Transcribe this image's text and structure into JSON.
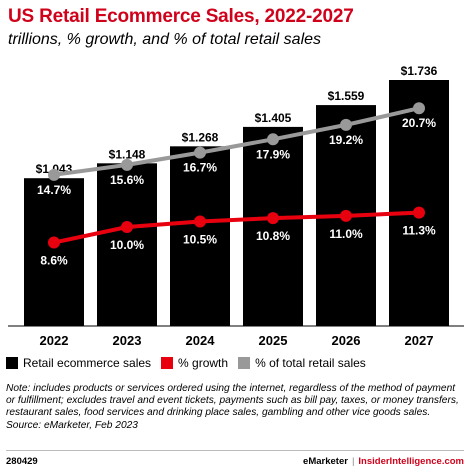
{
  "header": {
    "title": "US Retail Ecommerce Sales, 2022-2027",
    "subtitle": "trillions, % growth, and % of total retail sales"
  },
  "legend": {
    "items": [
      {
        "label": "Retail ecommerce sales",
        "color": "#000000"
      },
      {
        "label": "% growth",
        "color": "#e8000f"
      },
      {
        "label": "% of total retail sales",
        "color": "#999999"
      }
    ]
  },
  "chart_data": {
    "type": "bar",
    "categories": [
      "2022",
      "2023",
      "2024",
      "2025",
      "2026",
      "2027"
    ],
    "series": [
      {
        "name": "Retail ecommerce sales",
        "type": "bar",
        "values": [
          1.043,
          1.148,
          1.268,
          1.405,
          1.559,
          1.736
        ],
        "labels": [
          "$1.043",
          "$1.148",
          "$1.268",
          "$1.405",
          "$1.559",
          "$1.736"
        ],
        "color": "#000000"
      },
      {
        "name": "% growth",
        "type": "line",
        "values": [
          8.6,
          10.0,
          10.5,
          10.8,
          11.0,
          11.3
        ],
        "labels": [
          "8.6%",
          "10.0%",
          "10.5%",
          "10.8%",
          "11.0%",
          "11.3%"
        ],
        "color": "#e8000f"
      },
      {
        "name": "% of total retail sales",
        "type": "line",
        "values": [
          14.7,
          15.6,
          16.7,
          17.9,
          19.2,
          20.7
        ],
        "labels": [
          "14.7%",
          "15.6%",
          "16.7%",
          "17.9%",
          "19.2%",
          "20.7%"
        ],
        "color": "#999999"
      }
    ],
    "title": "US Retail Ecommerce Sales, 2022-2027",
    "subtitle": "trillions, % growth, and % of total retail sales",
    "grid": false,
    "legend_position": "bottom"
  },
  "note": {
    "text": "Note: includes products or services ordered using the internet, regardless of the method of payment or fulfillment; excludes travel and event tickets, payments such as bill pay, taxes, or money transfers, restaurant sales, food services and drinking place sales, gambling and other vice goods sales.",
    "source": "Source: eMarketer, Feb 2023"
  },
  "footer": {
    "code": "280429",
    "brand": "eMarketer",
    "separator": "|",
    "site": "InsiderIntelligence.com"
  }
}
